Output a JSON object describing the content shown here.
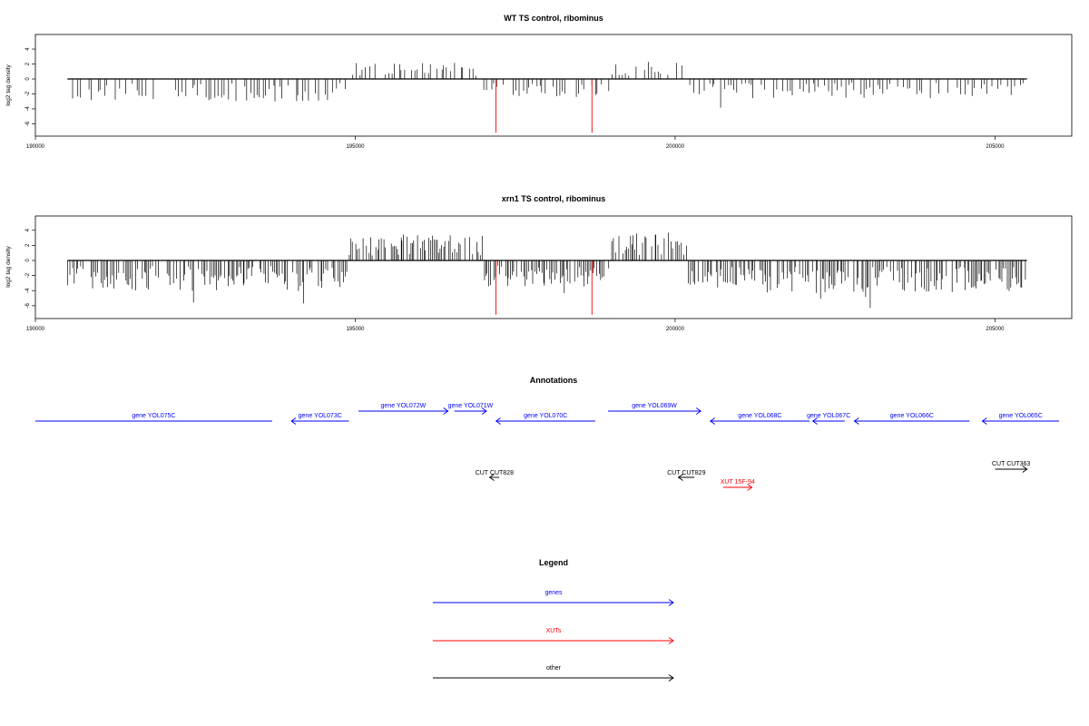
{
  "chart_data": [
    {
      "type": "bar",
      "title": "WT TS control, ribominus",
      "xlabel": "",
      "ylabel": "log2 tag density",
      "xlim": [
        190000,
        206200
      ],
      "ylim": [
        -7.8,
        5.8
      ],
      "x_ticks": [
        190000,
        195000,
        200000,
        205000
      ],
      "y_ticks": [
        4,
        2,
        0,
        -2,
        -4,
        -6
      ],
      "data_range": [
        190500,
        205500
      ],
      "highlight_bars": [
        {
          "x": 197200,
          "value": -7.2
        },
        {
          "x": 198700,
          "value": -7.2
        }
      ],
      "series": [
        {
          "name": "",
          "region_start": 190500,
          "region_end": 194900,
          "typical_value": -2.3,
          "sign": "negative"
        },
        {
          "name": "",
          "region_start": 194900,
          "region_end": 197000,
          "typical_value": 1.6,
          "sign": "positive"
        },
        {
          "name": "",
          "region_start": 197000,
          "region_end": 199000,
          "typical_value": -1.8,
          "sign": "negative"
        },
        {
          "name": "",
          "region_start": 199000,
          "region_end": 200200,
          "typical_value": 1.8,
          "sign": "positive"
        },
        {
          "name": "",
          "region_start": 200200,
          "region_end": 205500,
          "typical_value": -1.9,
          "sign": "negative"
        }
      ]
    },
    {
      "type": "bar",
      "title": "xrn1 TS control, ribominus",
      "xlabel": "",
      "ylabel": "log2 tag density",
      "xlim": [
        190000,
        206200
      ],
      "ylim": [
        -7.8,
        5.8
      ],
      "x_ticks": [
        190000,
        195000,
        200000,
        205000
      ],
      "y_ticks": [
        4,
        2,
        0,
        -2,
        -4,
        -6
      ],
      "data_range": [
        190500,
        205500
      ],
      "highlight_bars": [
        {
          "x": 197200,
          "value": -7.2
        },
        {
          "x": 198700,
          "value": -7.2
        }
      ],
      "series": [
        {
          "name": "",
          "region_start": 190500,
          "region_end": 194900,
          "typical_value": -3.0,
          "sign": "negative"
        },
        {
          "name": "",
          "region_start": 194900,
          "region_end": 197000,
          "typical_value": 2.6,
          "sign": "positive"
        },
        {
          "name": "",
          "region_start": 197000,
          "region_end": 199000,
          "typical_value": -2.6,
          "sign": "negative"
        },
        {
          "name": "",
          "region_start": 199000,
          "region_end": 200200,
          "typical_value": 2.8,
          "sign": "positive"
        },
        {
          "name": "",
          "region_start": 200200,
          "region_end": 205500,
          "typical_value": -3.2,
          "sign": "negative"
        }
      ]
    }
  ],
  "annotations": {
    "title": "Annotations",
    "colors": {
      "gene": "#0000ff",
      "xut": "#ff0000",
      "other": "#000000"
    },
    "features": [
      {
        "label": "gene YOL075C",
        "kind": "gene",
        "row": 1,
        "start": 189900,
        "end": 193600,
        "dir": "none"
      },
      {
        "label": "gene YOL073C",
        "kind": "gene",
        "row": 1,
        "start": 193900,
        "end": 194800,
        "dir": "left"
      },
      {
        "label": "gene YOL072W",
        "kind": "gene",
        "row": 0,
        "start": 194950,
        "end": 196350,
        "dir": "right"
      },
      {
        "label": "gene YOL071W",
        "kind": "gene",
        "row": 0,
        "start": 196450,
        "end": 196950,
        "dir": "right"
      },
      {
        "label": "gene YOL070C",
        "kind": "gene",
        "row": 1,
        "start": 197100,
        "end": 198650,
        "dir": "left"
      },
      {
        "label": "gene YOL069W",
        "kind": "gene",
        "row": 0,
        "start": 198850,
        "end": 200300,
        "dir": "right"
      },
      {
        "label": "gene YOL068C",
        "kind": "gene",
        "row": 1,
        "start": 200450,
        "end": 202000,
        "dir": "left"
      },
      {
        "label": "gene YOL067C",
        "kind": "gene",
        "row": 1,
        "start": 202050,
        "end": 202550,
        "dir": "left"
      },
      {
        "label": "gene YOL066C",
        "kind": "gene",
        "row": 1,
        "start": 202700,
        "end": 204500,
        "dir": "left"
      },
      {
        "label": "gene YOL065C",
        "kind": "gene",
        "row": 1,
        "start": 204700,
        "end": 205900,
        "dir": "left"
      },
      {
        "label": "CUT CUT828",
        "kind": "other",
        "row": 2,
        "start": 197000,
        "end": 197150,
        "dir": "left"
      },
      {
        "label": "CUT CUT829",
        "kind": "other",
        "row": 2,
        "start": 199950,
        "end": 200200,
        "dir": "left"
      },
      {
        "label": "CUT CUT363",
        "kind": "other",
        "row": 3,
        "start": 204900,
        "end": 205400,
        "dir": "right"
      },
      {
        "label": "XUT 15F-94",
        "kind": "xut",
        "row": 4,
        "start": 200650,
        "end": 201100,
        "dir": "right"
      }
    ]
  },
  "legend": {
    "title": "Legend",
    "items": [
      {
        "label": "genes",
        "color": "#0000ff"
      },
      {
        "label": "XUTs",
        "color": "#ff0000"
      },
      {
        "label": "other",
        "color": "#000000"
      }
    ]
  }
}
